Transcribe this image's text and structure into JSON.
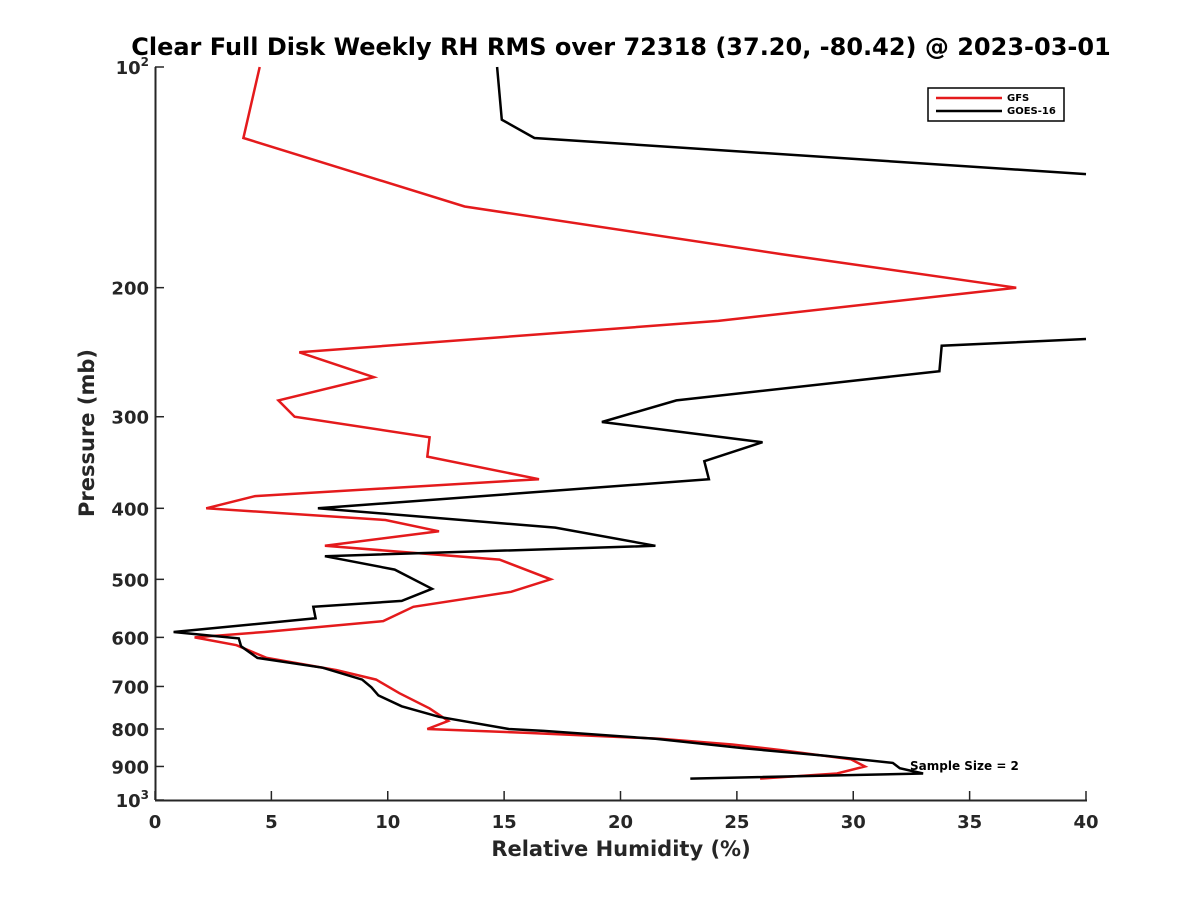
{
  "chart_data": {
    "type": "line",
    "title": "Clear Full Disk Weekly RH RMS over 72318 (37.20, -80.42) @ 2023-03-01",
    "xlabel": "Relative Humidity (%)",
    "ylabel": "Pressure (mb)",
    "xlim": [
      0,
      40
    ],
    "ylim": [
      100,
      1000
    ],
    "y_scale": "log",
    "y_reversed": true,
    "x_ticks": [
      0,
      5,
      10,
      15,
      20,
      25,
      30,
      35,
      40
    ],
    "y_ticks": [
      100,
      200,
      300,
      400,
      500,
      600,
      700,
      800,
      900,
      1000
    ],
    "y_tick_labels": [
      "10^2",
      "200",
      "300",
      "400",
      "500",
      "600",
      "700",
      "800",
      "900",
      "10^3"
    ],
    "legend_position": "top-right",
    "annotation": "Sample Size = 2",
    "series": [
      {
        "name": "GFS",
        "color": "#e41a1c",
        "x": [
          4.5,
          3.8,
          13.3,
          26.9,
          37.0,
          24.2,
          6.2,
          9.4,
          5.3,
          6.0,
          11.8,
          11.7,
          16.5,
          4.3,
          2.2,
          9.9,
          12.2,
          7.3,
          14.8,
          17.0,
          15.3,
          11.1,
          9.8,
          4.7,
          1.7,
          3.5,
          4.8,
          7.8,
          9.5,
          10.5,
          11.8,
          12.6,
          11.7,
          16.0,
          21.7,
          24.8,
          26.9,
          29.9,
          30.5,
          29.3,
          26.0
        ],
        "y": [
          100,
          125,
          155,
          180,
          200,
          222,
          245,
          265,
          285,
          300,
          320,
          340,
          365,
          385,
          400,
          415,
          430,
          450,
          470,
          500,
          520,
          545,
          570,
          590,
          600,
          615,
          640,
          665,
          685,
          715,
          750,
          780,
          800,
          810,
          825,
          840,
          855,
          880,
          900,
          920,
          935
        ]
      },
      {
        "name": "GOES-16",
        "color": "#000000",
        "x": [
          14.7,
          14.9,
          16.3,
          40.0,
          null,
          40.0,
          33.8,
          33.7,
          22.4,
          19.2,
          26.1,
          23.6,
          23.8,
          7.0,
          17.2,
          21.5,
          7.3,
          10.3,
          11.9,
          10.6,
          6.8,
          6.9,
          0.8,
          3.6,
          3.7,
          4.4,
          7.2,
          8.9,
          9.3,
          9.6,
          10.6,
          12.2,
          15.2,
          16.7,
          21.5,
          25.3,
          28.8,
          31.7,
          32.0,
          33.0,
          23.0
        ],
        "y": [
          100,
          118,
          125,
          140,
          null,
          235,
          240,
          260,
          285,
          305,
          325,
          345,
          365,
          400,
          425,
          450,
          465,
          485,
          515,
          535,
          545,
          565,
          590,
          602,
          617,
          640,
          660,
          685,
          702,
          720,
          745,
          770,
          800,
          805,
          825,
          850,
          870,
          890,
          905,
          920,
          935
        ]
      }
    ]
  }
}
